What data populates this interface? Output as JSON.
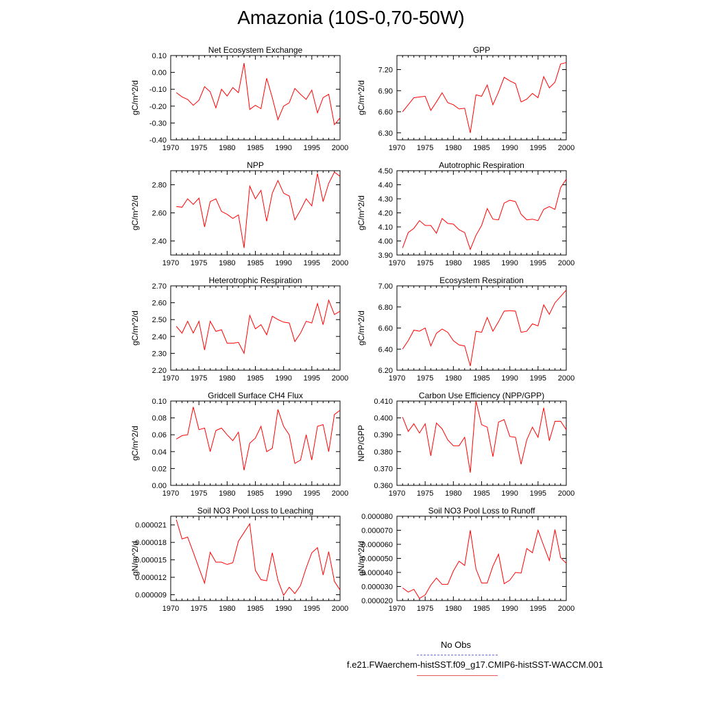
{
  "title": "Amazonia (10S-0,70-50W)",
  "legend": {
    "obs_label": "No Obs",
    "run_label": "f.e21.FWaerchem-histSST.f09_g17.CMIP6-histSST-WACCM.001",
    "obs_color": "#6b6bd8",
    "run_color": "#e05a5a"
  },
  "chart_data": [
    {
      "type": "line",
      "title": "Net Ecosystem Exchange",
      "ylabel": "gC/m^2/d",
      "xlim": [
        1970,
        2000
      ],
      "ylim": [
        -0.4,
        0.1
      ],
      "yticks": [
        -0.4,
        -0.3,
        -0.2,
        -0.1,
        0.0,
        0.1
      ],
      "ytick_labels": [
        "-0.40",
        "-0.30",
        "-0.20",
        "-0.10",
        "0.00",
        "0.10"
      ],
      "xticks": [
        1970,
        1975,
        1980,
        1985,
        1990,
        1995,
        2000
      ],
      "x_start": 1971,
      "color": "#ff0000",
      "values": [
        -0.12,
        -0.145,
        -0.16,
        -0.195,
        -0.165,
        -0.085,
        -0.115,
        -0.21,
        -0.1,
        -0.14,
        -0.09,
        -0.12,
        0.055,
        -0.22,
        -0.195,
        -0.215,
        -0.035,
        -0.15,
        -0.28,
        -0.2,
        -0.18,
        -0.095,
        -0.13,
        -0.16,
        -0.105,
        -0.24,
        -0.15,
        -0.13,
        -0.31,
        -0.27
      ]
    },
    {
      "type": "line",
      "title": "GPP",
      "ylabel": "gC/m^2/d",
      "xlim": [
        1970,
        2000
      ],
      "ylim": [
        6.2,
        7.4
      ],
      "yticks": [
        6.3,
        6.6,
        6.9,
        7.2
      ],
      "ytick_labels": [
        "6.30",
        "6.60",
        "6.90",
        "7.20"
      ],
      "xticks": [
        1970,
        1975,
        1980,
        1985,
        1990,
        1995,
        2000
      ],
      "x_start": 1971,
      "color": "#ff0000",
      "values": [
        6.6,
        6.7,
        6.8,
        6.81,
        6.82,
        6.62,
        6.74,
        6.87,
        6.73,
        6.7,
        6.64,
        6.65,
        6.3,
        6.84,
        6.82,
        6.98,
        6.7,
        6.88,
        7.09,
        7.04,
        7.0,
        6.74,
        6.78,
        6.86,
        6.8,
        7.1,
        6.94,
        7.02,
        7.28,
        7.3
      ]
    },
    {
      "type": "line",
      "title": "NPP",
      "ylabel": "gC/m^2/d",
      "xlim": [
        1970,
        2000
      ],
      "ylim": [
        2.3,
        2.9
      ],
      "yticks": [
        2.4,
        2.6,
        2.8
      ],
      "ytick_labels": [
        "2.40",
        "2.60",
        "2.80"
      ],
      "xticks": [
        1970,
        1975,
        1980,
        1985,
        1990,
        1995,
        2000
      ],
      "x_start": 1971,
      "color": "#ff0000",
      "values": [
        2.645,
        2.64,
        2.7,
        2.66,
        2.705,
        2.5,
        2.68,
        2.7,
        2.61,
        2.59,
        2.56,
        2.585,
        2.35,
        2.79,
        2.7,
        2.76,
        2.54,
        2.74,
        2.83,
        2.74,
        2.72,
        2.55,
        2.62,
        2.7,
        2.65,
        2.88,
        2.68,
        2.81,
        2.89,
        2.86
      ]
    },
    {
      "type": "line",
      "title": "Autotrophic Respiration",
      "ylabel": "gC/m^2/d",
      "xlim": [
        1970,
        2000
      ],
      "ylim": [
        3.9,
        4.5
      ],
      "yticks": [
        3.9,
        4.0,
        4.1,
        4.2,
        4.3,
        4.4,
        4.5
      ],
      "ytick_labels": [
        "3.90",
        "4.00",
        "4.10",
        "4.20",
        "4.30",
        "4.40",
        "4.50"
      ],
      "xticks": [
        1970,
        1975,
        1980,
        1985,
        1990,
        1995,
        2000
      ],
      "x_start": 1971,
      "color": "#ff0000",
      "values": [
        3.95,
        4.06,
        4.09,
        4.145,
        4.11,
        4.11,
        4.055,
        4.16,
        4.125,
        4.12,
        4.08,
        4.06,
        3.94,
        4.04,
        4.11,
        4.23,
        4.155,
        4.15,
        4.27,
        4.29,
        4.28,
        4.19,
        4.15,
        4.155,
        4.145,
        4.225,
        4.245,
        4.225,
        4.38,
        4.44
      ]
    },
    {
      "type": "line",
      "title": "Heterotrophic Respiration",
      "ylabel": "gC/m^2/d",
      "xlim": [
        1970,
        2000
      ],
      "ylim": [
        2.2,
        2.7
      ],
      "yticks": [
        2.2,
        2.3,
        2.4,
        2.5,
        2.6,
        2.7
      ],
      "ytick_labels": [
        "2.20",
        "2.30",
        "2.40",
        "2.50",
        "2.60",
        "2.70"
      ],
      "xticks": [
        1970,
        1975,
        1980,
        1985,
        1990,
        1995,
        2000
      ],
      "x_start": 1971,
      "color": "#ff0000",
      "values": [
        2.46,
        2.42,
        2.49,
        2.42,
        2.49,
        2.32,
        2.49,
        2.43,
        2.44,
        2.36,
        2.36,
        2.365,
        2.3,
        2.525,
        2.445,
        2.47,
        2.41,
        2.52,
        2.5,
        2.485,
        2.48,
        2.37,
        2.42,
        2.49,
        2.48,
        2.595,
        2.47,
        2.615,
        2.53,
        2.55
      ]
    },
    {
      "type": "line",
      "title": "Ecosystem Respiration",
      "ylabel": "gC/m^2/d",
      "xlim": [
        1970,
        2000
      ],
      "ylim": [
        6.2,
        7.0
      ],
      "yticks": [
        6.2,
        6.4,
        6.6,
        6.8,
        7.0
      ],
      "ytick_labels": [
        "6.20",
        "6.40",
        "6.60",
        "6.80",
        "7.00"
      ],
      "xticks": [
        1970,
        1975,
        1980,
        1985,
        1990,
        1995,
        2000
      ],
      "x_start": 1971,
      "color": "#ff0000",
      "values": [
        6.4,
        6.48,
        6.58,
        6.57,
        6.6,
        6.43,
        6.55,
        6.59,
        6.56,
        6.48,
        6.44,
        6.43,
        6.24,
        6.57,
        6.56,
        6.7,
        6.57,
        6.66,
        6.76,
        6.765,
        6.76,
        6.56,
        6.57,
        6.64,
        6.62,
        6.82,
        6.73,
        6.84,
        6.9,
        6.96
      ]
    },
    {
      "type": "line",
      "title": "Gridcell Surface CH4 Flux",
      "ylabel": "gC/m^2/d",
      "xlim": [
        1970,
        2000
      ],
      "ylim": [
        0.0,
        0.1
      ],
      "yticks": [
        0.0,
        0.02,
        0.04,
        0.06,
        0.08,
        0.1
      ],
      "ytick_labels": [
        "0.00",
        "0.02",
        "0.04",
        "0.06",
        "0.08",
        "0.10"
      ],
      "xticks": [
        1970,
        1975,
        1980,
        1985,
        1990,
        1995,
        2000
      ],
      "x_start": 1971,
      "color": "#ff0000",
      "values": [
        0.055,
        0.059,
        0.06,
        0.093,
        0.066,
        0.068,
        0.04,
        0.065,
        0.068,
        0.06,
        0.053,
        0.063,
        0.018,
        0.05,
        0.056,
        0.07,
        0.04,
        0.044,
        0.09,
        0.07,
        0.06,
        0.026,
        0.03,
        0.06,
        0.03,
        0.07,
        0.072,
        0.04,
        0.084,
        0.089
      ]
    },
    {
      "type": "line",
      "title": "Carbon Use Efficiency (NPP/GPP)",
      "ylabel": "NPP/GPP",
      "xlim": [
        1970,
        2000
      ],
      "ylim": [
        0.36,
        0.41
      ],
      "yticks": [
        0.36,
        0.37,
        0.38,
        0.39,
        0.4,
        0.41
      ],
      "ytick_labels": [
        "0.360",
        "0.370",
        "0.380",
        "0.390",
        "0.400",
        "0.410"
      ],
      "xticks": [
        1970,
        1975,
        1980,
        1985,
        1990,
        1995,
        2000
      ],
      "x_start": 1971,
      "color": "#ff0000",
      "values": [
        0.4005,
        0.392,
        0.3965,
        0.391,
        0.3965,
        0.3775,
        0.397,
        0.3935,
        0.387,
        0.3835,
        0.3835,
        0.3885,
        0.3675,
        0.41,
        0.396,
        0.3945,
        0.377,
        0.3975,
        0.399,
        0.389,
        0.3885,
        0.3725,
        0.387,
        0.3945,
        0.3885,
        0.406,
        0.3865,
        0.398,
        0.398,
        0.393
      ]
    },
    {
      "type": "line",
      "title": "Soil NO3 Pool Loss to Leaching",
      "ylabel": "gN/m^2/d",
      "xlim": [
        1970,
        2000
      ],
      "ylim": [
        8e-06,
        2.25e-05
      ],
      "yticks": [
        9e-06,
        1.2e-05,
        1.5e-05,
        1.8e-05,
        2.1e-05
      ],
      "ytick_labels": [
        "0.000009",
        "0.000012",
        "0.000015",
        "0.000018",
        "0.000021"
      ],
      "xticks": [
        1970,
        1975,
        1980,
        1985,
        1990,
        1995,
        2000
      ],
      "x_start": 1971,
      "color": "#ff0000",
      "values": [
        2.19e-05,
        1.86e-05,
        1.89e-05,
        1.63e-05,
        1.36e-05,
        1.1e-05,
        1.63e-05,
        1.46e-05,
        1.46e-05,
        1.42e-05,
        1.45e-05,
        1.82e-05,
        1.97e-05,
        2.12e-05,
        1.32e-05,
        1.16e-05,
        1.14e-05,
        1.62e-05,
        1.15e-05,
        8.9e-06,
        1.03e-05,
        9.2e-06,
        1.06e-05,
        1.36e-05,
        1.62e-05,
        1.71e-05,
        1.24e-05,
        1.64e-05,
        1.13e-05,
        9.8e-06
      ]
    },
    {
      "type": "line",
      "title": "Soil NO3 Pool Loss to Runoff",
      "ylabel": "gN/m^2/d",
      "xlim": [
        1970,
        2000
      ],
      "ylim": [
        2e-05,
        8e-05
      ],
      "yticks": [
        2e-05,
        3e-05,
        4e-05,
        5e-05,
        6e-05,
        7e-05,
        8e-05
      ],
      "ytick_labels": [
        "0.000020",
        "0.000030",
        "0.000040",
        "0.000050",
        "0.000060",
        "0.000070",
        "0.000080"
      ],
      "xticks": [
        1970,
        1975,
        1980,
        1985,
        1990,
        1995,
        2000
      ],
      "x_start": 1971,
      "color": "#ff0000",
      "values": [
        2.9e-05,
        2.6e-05,
        2.8e-05,
        2.15e-05,
        2.4e-05,
        3.1e-05,
        3.6e-05,
        3.15e-05,
        3.15e-05,
        4.1e-05,
        4.8e-05,
        4.5e-05,
        7e-05,
        4.25e-05,
        3.25e-05,
        3.25e-05,
        4.45e-05,
        5.3e-05,
        3.2e-05,
        3.45e-05,
        4e-05,
        3.95e-05,
        5.7e-05,
        5.4e-05,
        7e-05,
        5.9e-05,
        4.85e-05,
        7.05e-05,
        5.05e-05,
        4.65e-05
      ]
    }
  ]
}
